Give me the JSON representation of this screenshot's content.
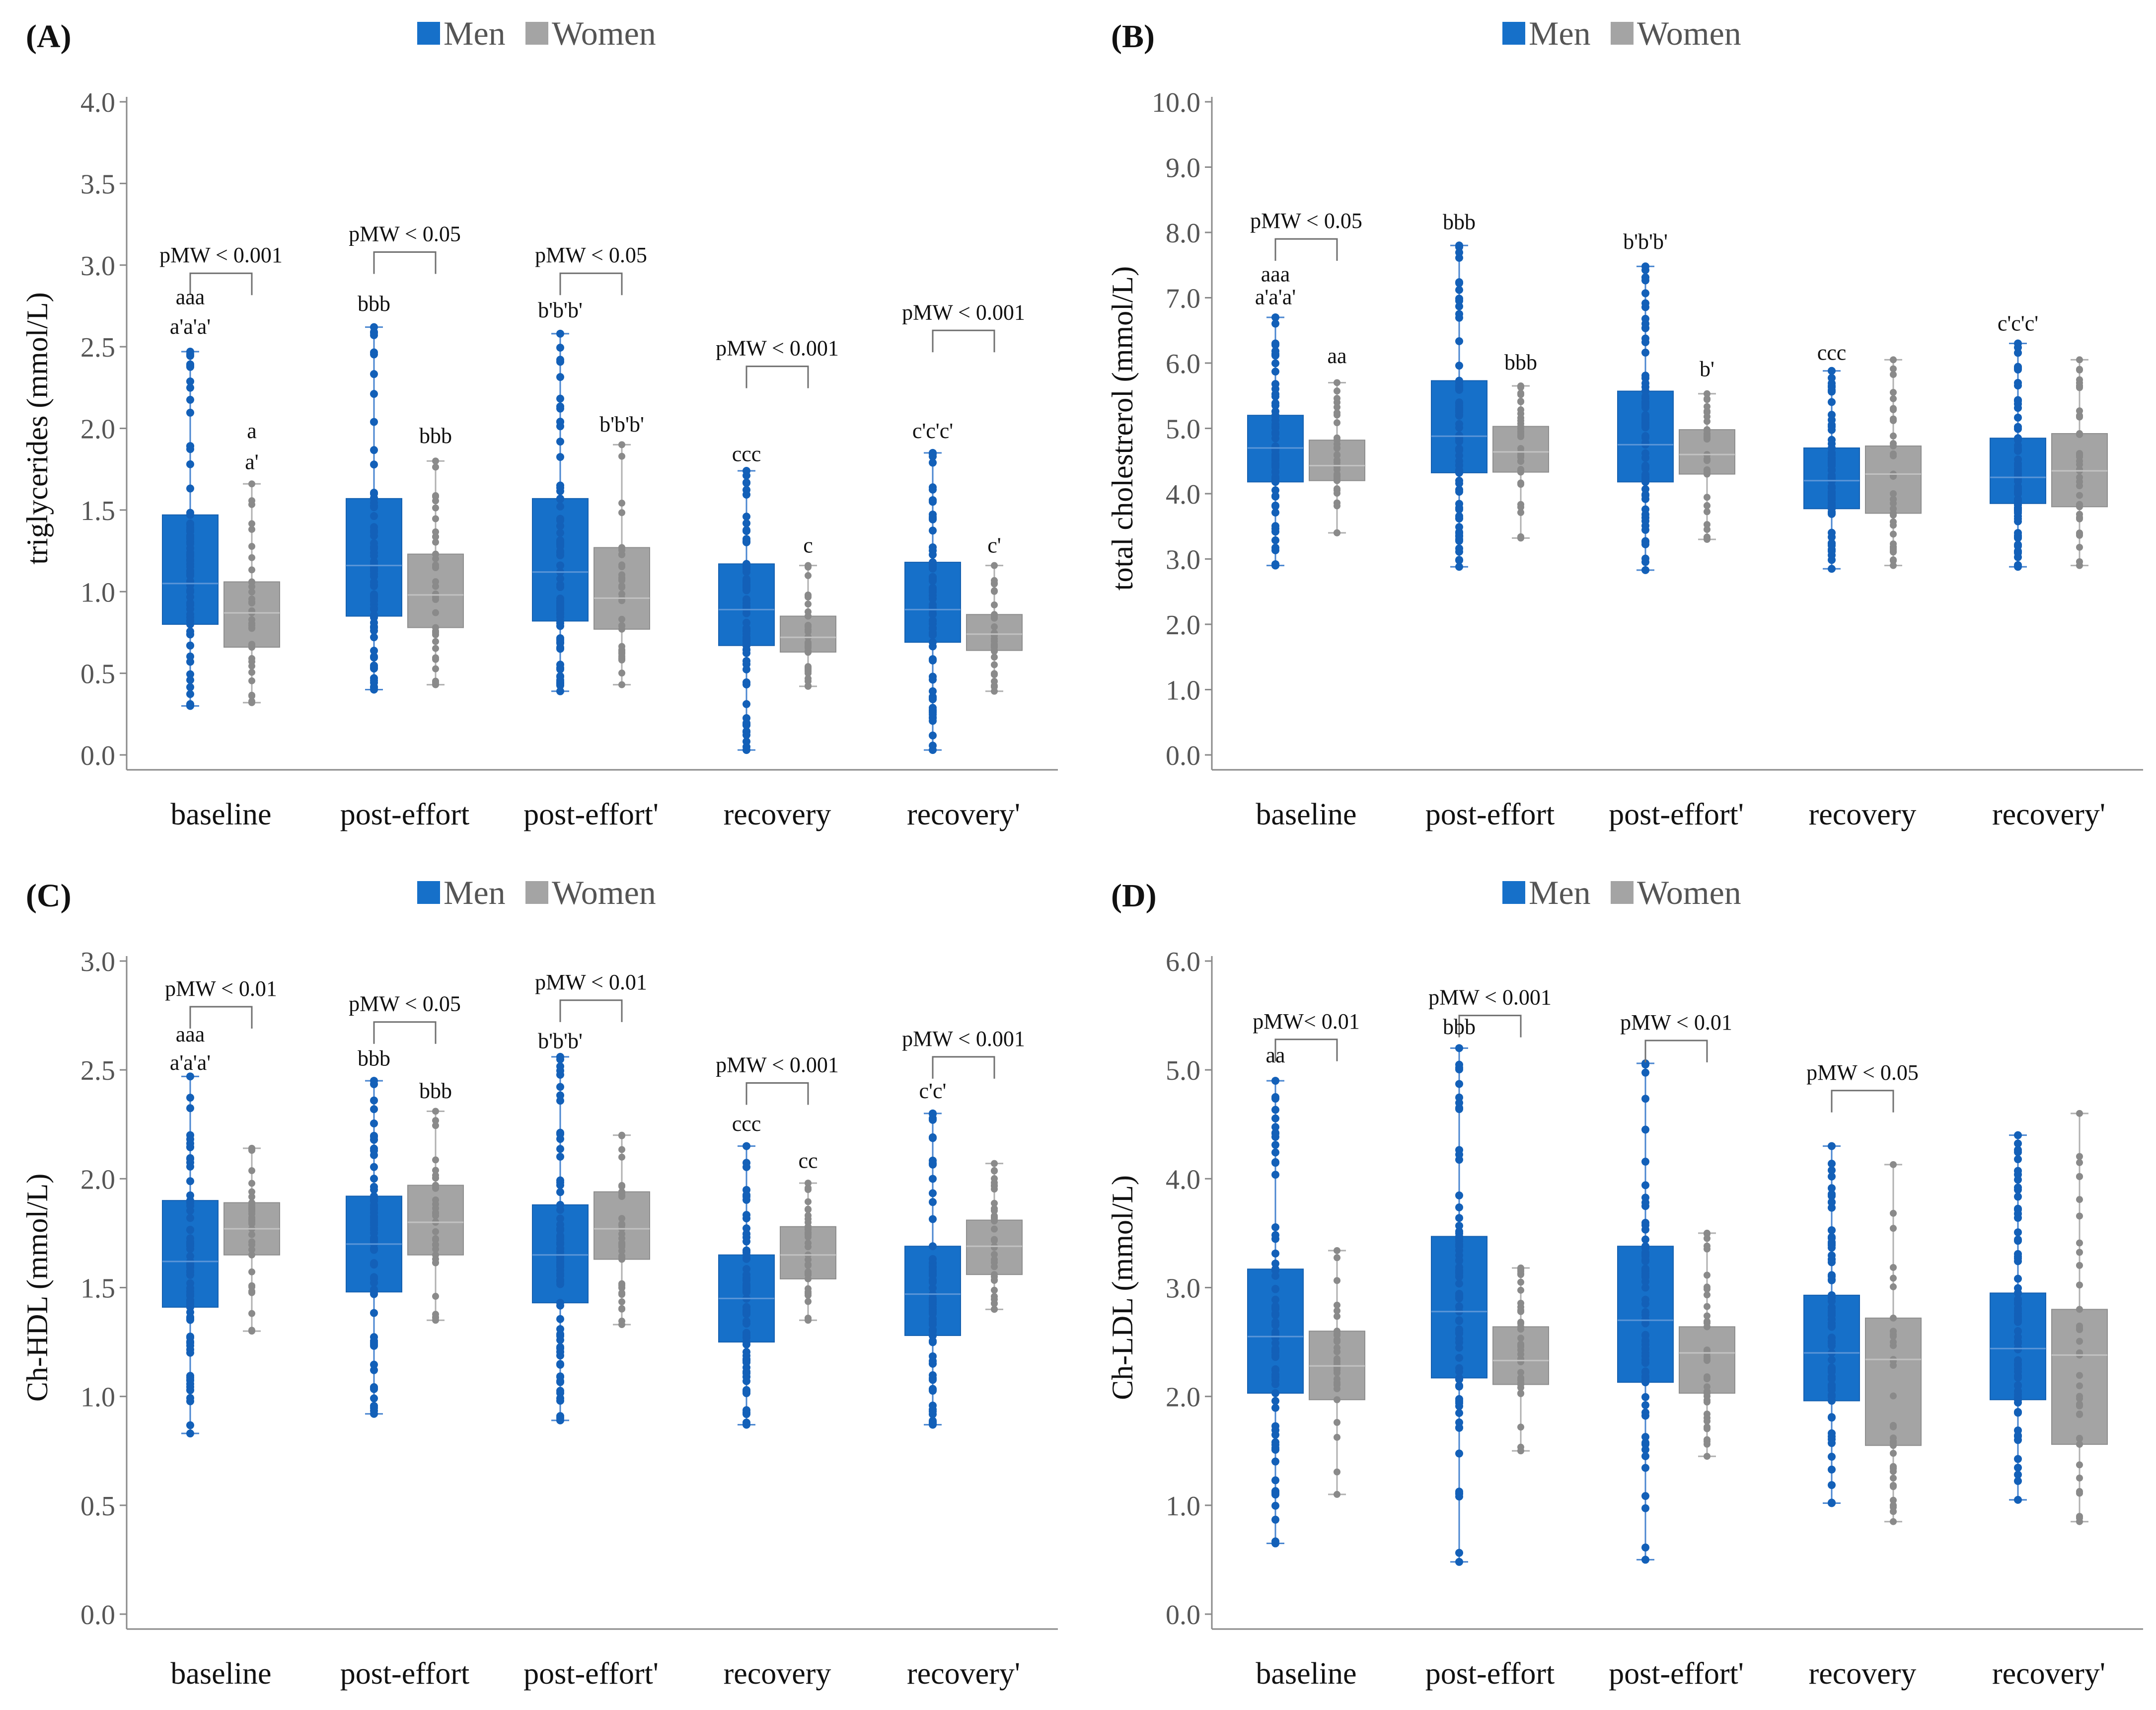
{
  "legend": {
    "men": "Men",
    "women": "Women"
  },
  "colors": {
    "men": "#1670c9",
    "women": "#a4a4a4",
    "men_dot": "#1360b8",
    "women_dot": "#8a8a8a",
    "axis": "#8a8a8a",
    "tick_text": "#555555",
    "bracket": "#707070",
    "text": "#111111"
  },
  "categories": [
    "baseline",
    "post-effort",
    "post-effort'",
    "recovery",
    "recovery'"
  ],
  "chart_data": [
    {
      "id": "A",
      "type": "box",
      "panel_label": "(A)",
      "ylabel": "triglycerides (mmol/L)",
      "ylim": [
        0,
        4
      ],
      "ticks": [
        "0.0",
        "0.5",
        "1.0",
        "1.5",
        "2.0",
        "2.5",
        "3.0",
        "3.5",
        "4.0"
      ],
      "categories": [
        "baseline",
        "post-effort",
        "post-effort'",
        "recovery",
        "recovery'"
      ],
      "series": [
        {
          "name": "Men",
          "boxes": [
            {
              "min": 0.3,
              "q1": 0.8,
              "median": 1.05,
              "q3": 1.47,
              "max": 2.47
            },
            {
              "min": 0.4,
              "q1": 0.85,
              "median": 1.16,
              "q3": 1.57,
              "max": 2.62
            },
            {
              "min": 0.39,
              "q1": 0.82,
              "median": 1.12,
              "q3": 1.57,
              "max": 2.58
            },
            {
              "min": 0.03,
              "q1": 0.67,
              "median": 0.89,
              "q3": 1.17,
              "max": 1.74
            },
            {
              "min": 0.03,
              "q1": 0.69,
              "median": 0.89,
              "q3": 1.18,
              "max": 1.85
            }
          ]
        },
        {
          "name": "Women",
          "boxes": [
            {
              "min": 0.32,
              "q1": 0.66,
              "median": 0.87,
              "q3": 1.06,
              "max": 1.66
            },
            {
              "min": 0.43,
              "q1": 0.78,
              "median": 0.98,
              "q3": 1.23,
              "max": 1.8
            },
            {
              "min": 0.43,
              "q1": 0.77,
              "median": 0.96,
              "q3": 1.27,
              "max": 1.9
            },
            {
              "min": 0.42,
              "q1": 0.63,
              "median": 0.72,
              "q3": 0.85,
              "max": 1.16
            },
            {
              "min": 0.39,
              "q1": 0.64,
              "median": 0.74,
              "q3": 0.86,
              "max": 1.16
            }
          ]
        }
      ],
      "annotations": [
        {
          "text": "aaa",
          "group": 0,
          "series": "Men",
          "y": 2.76
        },
        {
          "text": "a'a'a'",
          "group": 0,
          "series": "Men",
          "y": 2.58
        },
        {
          "text": "a",
          "group": 0,
          "series": "Women",
          "y": 1.94
        },
        {
          "text": "a'",
          "group": 0,
          "series": "Women",
          "y": 1.75
        },
        {
          "text": "bbb",
          "group": 1,
          "series": "Men",
          "y": 2.72
        },
        {
          "text": "bbb",
          "group": 1,
          "series": "Women",
          "y": 1.91
        },
        {
          "text": "b'b'b'",
          "group": 2,
          "series": "Men",
          "y": 2.68
        },
        {
          "text": "b'b'b'",
          "group": 2,
          "series": "Women",
          "y": 1.98
        },
        {
          "text": "ccc",
          "group": 3,
          "series": "Men",
          "y": 1.8
        },
        {
          "text": "c",
          "group": 3,
          "series": "Women",
          "y": 1.24
        },
        {
          "text": "c'c'c'",
          "group": 4,
          "series": "Men",
          "y": 1.94
        },
        {
          "text": "c'",
          "group": 4,
          "series": "Women",
          "y": 1.24
        }
      ],
      "brackets": [
        {
          "text": "pMW < 0.001",
          "group": 0,
          "y": 2.95
        },
        {
          "text": "pMW < 0.05",
          "group": 1,
          "y": 3.08
        },
        {
          "text": "pMW < 0.05",
          "group": 2,
          "y": 2.95
        },
        {
          "text": "pMW < 0.001",
          "group": 3,
          "y": 2.38
        },
        {
          "text": "pMW < 0.001",
          "group": 4,
          "y": 2.6
        }
      ]
    },
    {
      "id": "B",
      "type": "box",
      "panel_label": "(B)",
      "ylabel": "total cholestrerol (mmol/L)",
      "ylim": [
        0,
        10
      ],
      "ticks": [
        "0.0",
        "1.0",
        "2.0",
        "3.0",
        "4.0",
        "5.0",
        "6.0",
        "7.0",
        "8.0",
        "9.0",
        "10.0"
      ],
      "categories": [
        "baseline",
        "post-effort",
        "post-effort'",
        "recovery",
        "recovery'"
      ],
      "series": [
        {
          "name": "Men",
          "boxes": [
            {
              "min": 2.9,
              "q1": 4.18,
              "median": 4.7,
              "q3": 5.2,
              "max": 6.7
            },
            {
              "min": 2.88,
              "q1": 4.32,
              "median": 4.88,
              "q3": 5.73,
              "max": 7.8
            },
            {
              "min": 2.83,
              "q1": 4.18,
              "median": 4.75,
              "q3": 5.57,
              "max": 7.48
            },
            {
              "min": 2.85,
              "q1": 3.77,
              "median": 4.2,
              "q3": 4.7,
              "max": 5.88
            },
            {
              "min": 2.88,
              "q1": 3.85,
              "median": 4.25,
              "q3": 4.85,
              "max": 6.3
            }
          ]
        },
        {
          "name": "Women",
          "boxes": [
            {
              "min": 3.4,
              "q1": 4.2,
              "median": 4.43,
              "q3": 4.82,
              "max": 5.7
            },
            {
              "min": 3.32,
              "q1": 4.33,
              "median": 4.64,
              "q3": 5.03,
              "max": 5.65
            },
            {
              "min": 3.3,
              "q1": 4.3,
              "median": 4.6,
              "q3": 4.98,
              "max": 5.53
            },
            {
              "min": 2.9,
              "q1": 3.7,
              "median": 4.3,
              "q3": 4.73,
              "max": 6.05
            },
            {
              "min": 2.9,
              "q1": 3.8,
              "median": 4.35,
              "q3": 4.92,
              "max": 6.05
            }
          ]
        }
      ],
      "annotations": [
        {
          "text": "aaa",
          "group": 0,
          "series": "Men",
          "y": 7.25
        },
        {
          "text": "a'a'a'",
          "group": 0,
          "series": "Men",
          "y": 6.9
        },
        {
          "text": "aa",
          "group": 0,
          "series": "Women",
          "y": 6.0
        },
        {
          "text": "bbb",
          "group": 1,
          "series": "Men",
          "y": 8.05
        },
        {
          "text": "bbb",
          "group": 1,
          "series": "Women",
          "y": 5.9
        },
        {
          "text": "b'b'b'",
          "group": 2,
          "series": "Men",
          "y": 7.75
        },
        {
          "text": "b'",
          "group": 2,
          "series": "Women",
          "y": 5.8
        },
        {
          "text": "ccc",
          "group": 3,
          "series": "Men",
          "y": 6.05
        },
        {
          "text": "c'c'c'",
          "group": 4,
          "series": "Men",
          "y": 6.5
        }
      ],
      "brackets": [
        {
          "text": "pMW < 0.05",
          "group": 0,
          "y": 7.9
        }
      ]
    },
    {
      "id": "C",
      "type": "box",
      "panel_label": "(C)",
      "ylabel": "Ch-HDL (mmol/L)",
      "ylim": [
        0,
        3
      ],
      "ticks": [
        "0.0",
        "0.5",
        "1.0",
        "1.5",
        "2.0",
        "2.5",
        "3.0"
      ],
      "categories": [
        "baseline",
        "post-effort",
        "post-effort'",
        "recovery",
        "recovery'"
      ],
      "series": [
        {
          "name": "Men",
          "boxes": [
            {
              "min": 0.83,
              "q1": 1.41,
              "median": 1.62,
              "q3": 1.9,
              "max": 2.47
            },
            {
              "min": 0.92,
              "q1": 1.48,
              "median": 1.7,
              "q3": 1.92,
              "max": 2.45
            },
            {
              "min": 0.89,
              "q1": 1.43,
              "median": 1.65,
              "q3": 1.88,
              "max": 2.56
            },
            {
              "min": 0.87,
              "q1": 1.25,
              "median": 1.45,
              "q3": 1.65,
              "max": 2.15
            },
            {
              "min": 0.87,
              "q1": 1.28,
              "median": 1.47,
              "q3": 1.69,
              "max": 2.3
            }
          ]
        },
        {
          "name": "Women",
          "boxes": [
            {
              "min": 1.3,
              "q1": 1.65,
              "median": 1.77,
              "q3": 1.89,
              "max": 2.14
            },
            {
              "min": 1.35,
              "q1": 1.65,
              "median": 1.8,
              "q3": 1.97,
              "max": 2.31
            },
            {
              "min": 1.33,
              "q1": 1.63,
              "median": 1.77,
              "q3": 1.94,
              "max": 2.2
            },
            {
              "min": 1.35,
              "q1": 1.54,
              "median": 1.65,
              "q3": 1.78,
              "max": 1.98
            },
            {
              "min": 1.4,
              "q1": 1.56,
              "median": 1.69,
              "q3": 1.81,
              "max": 2.07
            }
          ]
        }
      ],
      "annotations": [
        {
          "text": "aaa",
          "group": 0,
          "series": "Men",
          "y": 2.63
        },
        {
          "text": "a'a'a'",
          "group": 0,
          "series": "Men",
          "y": 2.5
        },
        {
          "text": "bbb",
          "group": 1,
          "series": "Men",
          "y": 2.52
        },
        {
          "text": "bbb",
          "group": 1,
          "series": "Women",
          "y": 2.37
        },
        {
          "text": "b'b'b'",
          "group": 2,
          "series": "Men",
          "y": 2.6
        },
        {
          "text": "ccc",
          "group": 3,
          "series": "Men",
          "y": 2.22
        },
        {
          "text": "cc",
          "group": 3,
          "series": "Women",
          "y": 2.05
        },
        {
          "text": "c'c'",
          "group": 4,
          "series": "Men",
          "y": 2.37
        }
      ],
      "brackets": [
        {
          "text": "pMW < 0.01",
          "group": 0,
          "y": 2.79
        },
        {
          "text": "pMW < 0.05",
          "group": 1,
          "y": 2.72
        },
        {
          "text": "pMW < 0.01",
          "group": 2,
          "y": 2.82
        },
        {
          "text": "pMW < 0.001",
          "group": 3,
          "y": 2.44
        },
        {
          "text": "pMW < 0.001",
          "group": 4,
          "y": 2.56
        }
      ]
    },
    {
      "id": "D",
      "type": "box",
      "panel_label": "(D)",
      "ylabel": "Ch-LDL (mmol/L)",
      "ylim": [
        0,
        6
      ],
      "ticks": [
        "0.0",
        "1.0",
        "2.0",
        "3.0",
        "4.0",
        "5.0",
        "6.0"
      ],
      "categories": [
        "baseline",
        "post-effort",
        "post-effort'",
        "recovery",
        "recovery'"
      ],
      "series": [
        {
          "name": "Men",
          "boxes": [
            {
              "min": 0.65,
              "q1": 2.03,
              "median": 2.55,
              "q3": 3.17,
              "max": 4.9
            },
            {
              "min": 0.48,
              "q1": 2.17,
              "median": 2.78,
              "q3": 3.47,
              "max": 5.2
            },
            {
              "min": 0.5,
              "q1": 2.13,
              "median": 2.7,
              "q3": 3.38,
              "max": 5.06
            },
            {
              "min": 1.02,
              "q1": 1.96,
              "median": 2.4,
              "q3": 2.93,
              "max": 4.3
            },
            {
              "min": 1.05,
              "q1": 1.97,
              "median": 2.44,
              "q3": 2.95,
              "max": 4.4
            }
          ]
        },
        {
          "name": "Women",
          "boxes": [
            {
              "min": 1.1,
              "q1": 1.97,
              "median": 2.28,
              "q3": 2.6,
              "max": 3.34
            },
            {
              "min": 1.5,
              "q1": 2.11,
              "median": 2.33,
              "q3": 2.64,
              "max": 3.18
            },
            {
              "min": 1.45,
              "q1": 2.03,
              "median": 2.4,
              "q3": 2.64,
              "max": 3.5
            },
            {
              "min": 0.85,
              "q1": 1.55,
              "median": 2.34,
              "q3": 2.72,
              "max": 4.13
            },
            {
              "min": 0.85,
              "q1": 1.56,
              "median": 2.38,
              "q3": 2.8,
              "max": 4.6
            }
          ]
        }
      ],
      "annotations": [
        {
          "text": "aa",
          "group": 0,
          "series": "Men",
          "y": 5.07
        },
        {
          "text": "bbb",
          "group": 1,
          "series": "Men",
          "y": 5.33
        }
      ],
      "brackets": [
        {
          "text": "pMW< 0.01",
          "group": 0,
          "y": 5.28
        },
        {
          "text": "pMW < 0.001",
          "group": 1,
          "y": 5.5
        },
        {
          "text": "pMW < 0.01",
          "group": 2,
          "y": 5.27
        },
        {
          "text": "pMW < 0.05",
          "group": 3,
          "y": 4.81
        }
      ]
    }
  ]
}
